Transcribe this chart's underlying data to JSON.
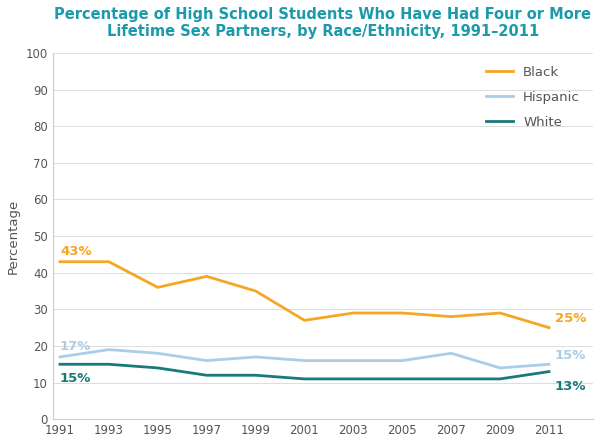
{
  "title_line1": "Percentage of High School Students Who Have Had Four or More",
  "title_line2": "Lifetime Sex Partners, by Race/Ethnicity, 1991–2011",
  "title_color": "#1a9aaa",
  "ylabel": "Percentage",
  "ylabel_color": "#555555",
  "background_color": "#ffffff",
  "years": [
    1991,
    1993,
    1995,
    1997,
    1999,
    2001,
    2003,
    2005,
    2007,
    2009,
    2011
  ],
  "black": [
    43,
    43,
    36,
    39,
    35,
    27,
    29,
    29,
    28,
    29,
    25
  ],
  "hispanic": [
    17,
    19,
    18,
    16,
    17,
    16,
    16,
    16,
    18,
    14,
    15
  ],
  "white": [
    15,
    15,
    14,
    12,
    12,
    11,
    11,
    11,
    11,
    11,
    13
  ],
  "black_color": "#f5a623",
  "hispanic_color": "#aacde8",
  "white_color": "#1a7a7a",
  "black_label": "Black",
  "hispanic_label": "Hispanic",
  "white_label": "White",
  "ylim": [
    0,
    100
  ],
  "yticks": [
    0,
    10,
    20,
    30,
    40,
    50,
    60,
    70,
    80,
    90,
    100
  ],
  "line_width": 2.0,
  "annotation_black_start": "43%",
  "annotation_black_end": "25%",
  "annotation_hispanic_start": "17%",
  "annotation_hispanic_end": "15%",
  "annotation_white_start": "15%",
  "annotation_white_end": "13%",
  "tick_color": "#555555",
  "grid_color": "#dddddd",
  "spine_color": "#cccccc",
  "legend_label_color": "#555555"
}
